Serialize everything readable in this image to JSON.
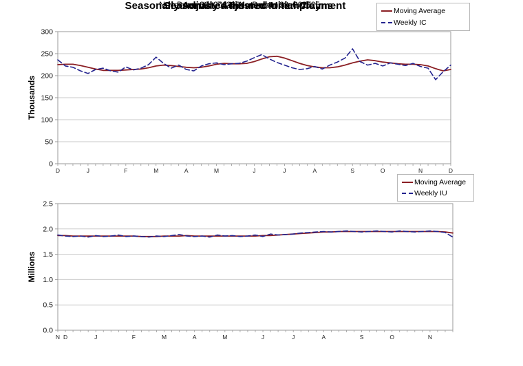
{
  "colors": {
    "moving_average": "#8b1f24",
    "weekly": "#24248f",
    "gridline": "#c9c9c9",
    "axis": "#9a9a9a",
    "tick_text": "#111111",
    "month_text": "#222222"
  },
  "chart_data": [
    {
      "type": "line",
      "title": "Seasonally Adjusted Initial Claims",
      "subtitle": "December 7, 2024 - December 6, 2025",
      "ylabel": "Thousands",
      "ylim": [
        0,
        300
      ],
      "yticks": [
        0,
        50,
        100,
        150,
        200,
        250,
        300
      ],
      "ytick_labels": [
        "0",
        "50",
        "100",
        "150",
        "200",
        "250",
        "300"
      ],
      "x_month_labels": [
        "D",
        "J",
        "F",
        "M",
        "A",
        "M",
        "J",
        "J",
        "A",
        "S",
        "O",
        "N",
        "D"
      ],
      "x_month_weeks": [
        0,
        4,
        9,
        13,
        17,
        21,
        26,
        30,
        34,
        39,
        43,
        48,
        52
      ],
      "grid": true,
      "legend_position": "top-right",
      "series": [
        {
          "name": "Moving Average",
          "color": "#8b1f24",
          "style": "solid",
          "values": [
            225,
            226,
            226,
            223,
            219,
            215,
            212,
            212,
            212,
            213,
            214,
            215,
            218,
            222,
            224,
            223,
            221,
            219,
            218,
            219,
            222,
            226,
            228,
            227,
            227,
            228,
            232,
            238,
            243,
            244,
            240,
            234,
            228,
            223,
            220,
            218,
            218,
            220,
            224,
            229,
            233,
            236,
            234,
            231,
            229,
            227,
            226,
            226,
            225,
            222,
            216,
            211,
            214
          ]
        },
        {
          "name": "Weekly IC",
          "color": "#24248f",
          "style": "dashed",
          "values": [
            236,
            222,
            219,
            211,
            205,
            214,
            217,
            211,
            208,
            220,
            213,
            217,
            225,
            242,
            228,
            217,
            224,
            214,
            211,
            222,
            227,
            229,
            225,
            227,
            228,
            233,
            241,
            248,
            238,
            230,
            224,
            218,
            214,
            216,
            221,
            215,
            224,
            231,
            240,
            261,
            232,
            224,
            228,
            222,
            229,
            226,
            223,
            228,
            221,
            217,
            191,
            209,
            224
          ]
        }
      ]
    },
    {
      "type": "line",
      "title": "Seasonally Adjusted Insured Unemployment",
      "subtitle": "November 30, 2024 - November 29, 2025",
      "ylabel": "Millions",
      "ylim": [
        0,
        2.5
      ],
      "yticks": [
        0,
        0.5,
        1.0,
        1.5,
        2.0,
        2.5
      ],
      "ytick_labels": [
        "0.0",
        "0.5",
        "1.0",
        "1.5",
        "2.0",
        "2.5"
      ],
      "x_month_labels": [
        "N",
        "D",
        "J",
        "F",
        "M",
        "A",
        "M",
        "J",
        "J",
        "A",
        "S",
        "O",
        "N"
      ],
      "x_month_weeks": [
        0,
        1,
        5,
        10,
        14,
        18,
        22,
        27,
        31,
        35,
        40,
        44,
        49
      ],
      "grid": true,
      "legend_position": "top-right",
      "series": [
        {
          "name": "Moving Average",
          "color": "#8b1f24",
          "style": "solid",
          "values": [
            1.87,
            1.87,
            1.86,
            1.86,
            1.86,
            1.86,
            1.86,
            1.86,
            1.86,
            1.86,
            1.86,
            1.85,
            1.85,
            1.85,
            1.86,
            1.86,
            1.86,
            1.87,
            1.86,
            1.86,
            1.86,
            1.86,
            1.86,
            1.86,
            1.86,
            1.86,
            1.86,
            1.87,
            1.87,
            1.88,
            1.89,
            1.9,
            1.91,
            1.92,
            1.93,
            1.94,
            1.94,
            1.95,
            1.95,
            1.95,
            1.95,
            1.95,
            1.95,
            1.95,
            1.95,
            1.95,
            1.95,
            1.95,
            1.95,
            1.95,
            1.95,
            1.94,
            1.92
          ]
        },
        {
          "name": "Weekly IU",
          "color": "#24248f",
          "style": "dashed",
          "values": [
            1.88,
            1.86,
            1.85,
            1.86,
            1.84,
            1.87,
            1.85,
            1.86,
            1.88,
            1.85,
            1.86,
            1.85,
            1.84,
            1.86,
            1.85,
            1.87,
            1.89,
            1.86,
            1.85,
            1.86,
            1.84,
            1.88,
            1.86,
            1.87,
            1.85,
            1.86,
            1.88,
            1.85,
            1.9,
            1.88,
            1.89,
            1.9,
            1.92,
            1.93,
            1.94,
            1.95,
            1.94,
            1.95,
            1.96,
            1.95,
            1.94,
            1.95,
            1.96,
            1.95,
            1.94,
            1.96,
            1.95,
            1.94,
            1.95,
            1.96,
            1.95,
            1.93,
            1.84
          ]
        }
      ]
    }
  ]
}
